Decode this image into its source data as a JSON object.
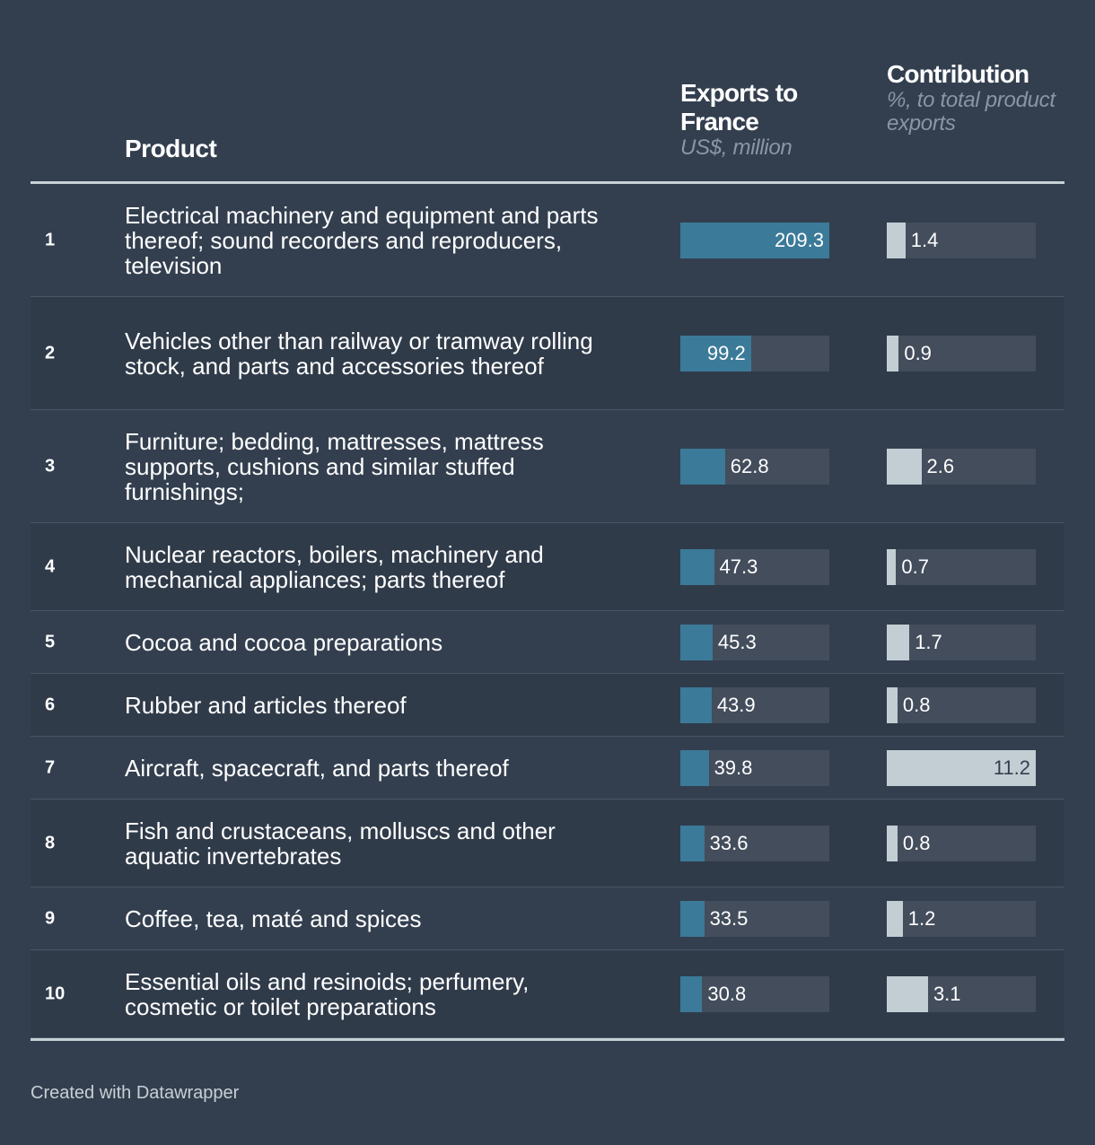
{
  "header": {
    "product": "Product",
    "exports_title": "Exports to France",
    "exports_sub": "US$, million",
    "contrib_title": "Contribution",
    "contrib_sub": "%, to total product exports"
  },
  "footer": "Created with Datawrapper",
  "colors": {
    "background": "#333f4f",
    "export_bar": "#3b7a98",
    "contrib_bar": "#c3ced4",
    "bar_track": "#434d5c"
  },
  "chart_data": {
    "type": "table",
    "columns": [
      "Product",
      "Exports to France",
      "Contribution"
    ],
    "export_max": 209.3,
    "contrib_max": 11.2,
    "rows": [
      {
        "rank": "1",
        "product": "Electrical machinery and equipment and parts thereof; sound recorders and reproducers, television",
        "exports": 209.3,
        "exports_label": "209.3",
        "contrib": 1.4,
        "contrib_label": "1.4"
      },
      {
        "rank": "2",
        "product": "Vehicles other than railway or tramway rolling stock, and parts and accessories thereof",
        "exports": 99.2,
        "exports_label": "99.2",
        "contrib": 0.9,
        "contrib_label": "0.9"
      },
      {
        "rank": "3",
        "product": "Furniture; bedding, mattresses, mattress supports, cushions and similar stuffed furnishings;",
        "exports": 62.8,
        "exports_label": "62.8",
        "contrib": 2.6,
        "contrib_label": "2.6"
      },
      {
        "rank": "4",
        "product": "Nuclear reactors, boilers, machinery and mechanical appliances; parts thereof",
        "exports": 47.3,
        "exports_label": "47.3",
        "contrib": 0.7,
        "contrib_label": "0.7"
      },
      {
        "rank": "5",
        "product": "Cocoa and cocoa preparations",
        "exports": 45.3,
        "exports_label": "45.3",
        "contrib": 1.7,
        "contrib_label": "1.7"
      },
      {
        "rank": "6",
        "product": "Rubber and articles thereof",
        "exports": 43.9,
        "exports_label": "43.9",
        "contrib": 0.8,
        "contrib_label": "0.8"
      },
      {
        "rank": "7",
        "product": "Aircraft, spacecraft, and parts thereof",
        "exports": 39.8,
        "exports_label": "39.8",
        "contrib": 11.2,
        "contrib_label": "11.2"
      },
      {
        "rank": "8",
        "product": "Fish and crustaceans, molluscs and other aquatic invertebrates",
        "exports": 33.6,
        "exports_label": "33.6",
        "contrib": 0.8,
        "contrib_label": "0.8"
      },
      {
        "rank": "9",
        "product": "Coffee, tea, maté and spices",
        "exports": 33.5,
        "exports_label": "33.5",
        "contrib": 1.2,
        "contrib_label": "1.2"
      },
      {
        "rank": "10",
        "product": "Essential oils and resinoids; perfumery, cosmetic or toilet preparations",
        "exports": 30.8,
        "exports_label": "30.8",
        "contrib": 3.1,
        "contrib_label": "3.1"
      }
    ]
  }
}
